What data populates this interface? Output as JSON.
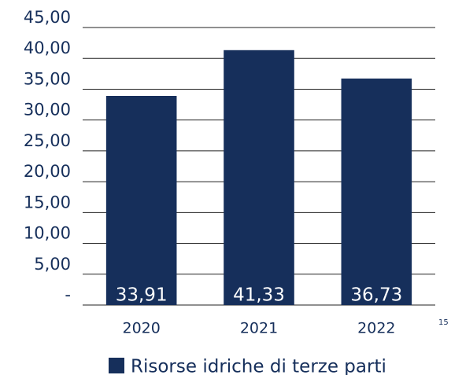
{
  "chart_data": {
    "type": "bar",
    "categories": [
      "2020",
      "2021",
      "2022"
    ],
    "series": [
      {
        "name": "Risorse idriche di terze parti",
        "color": "#162f5b",
        "values": [
          33.91,
          41.33,
          36.73
        ],
        "value_labels": [
          "33,91",
          "41,33",
          "36,73"
        ]
      }
    ],
    "ylim": [
      0,
      45
    ],
    "yticks": [
      {
        "value": 0,
        "label": "-"
      },
      {
        "value": 5,
        "label": "5,00"
      },
      {
        "value": 10,
        "label": "10,00"
      },
      {
        "value": 15,
        "label": "15,00"
      },
      {
        "value": 20,
        "label": "20,00"
      },
      {
        "value": 25,
        "label": "25,00"
      },
      {
        "value": 30,
        "label": "30,00"
      },
      {
        "value": 35,
        "label": "35,00"
      },
      {
        "value": 40,
        "label": "40,00"
      },
      {
        "value": 45,
        "label": "45,00"
      }
    ],
    "grid": true,
    "annotation": "15"
  }
}
